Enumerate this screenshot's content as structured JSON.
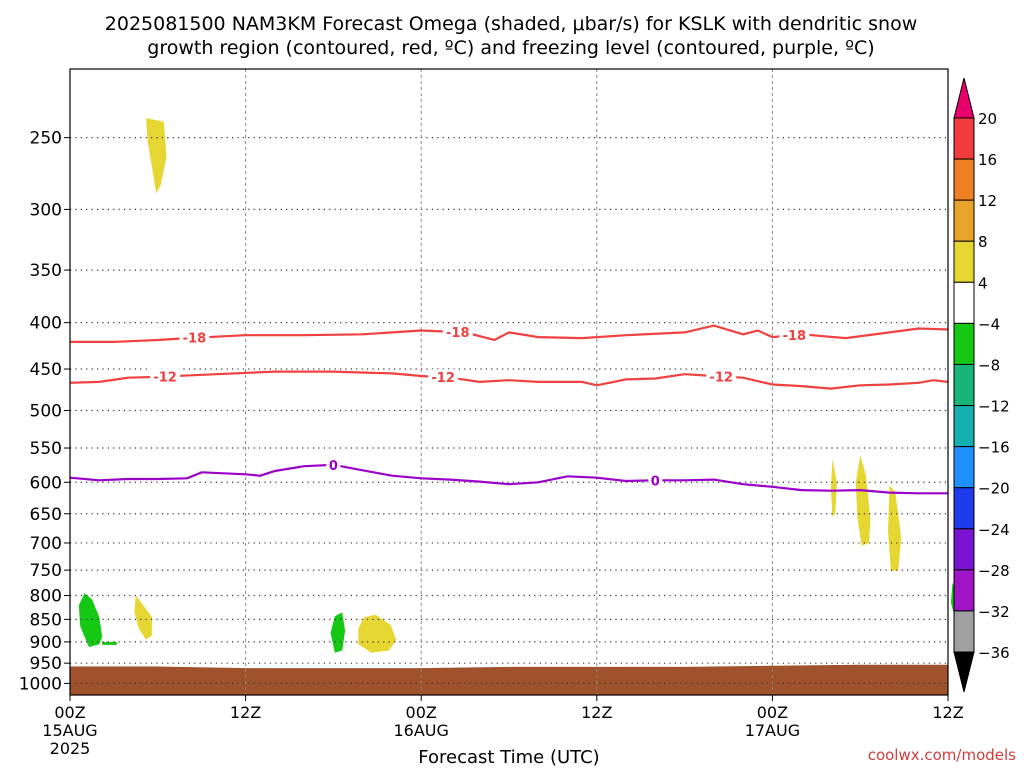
{
  "chart_data": {
    "type": "heatmap",
    "title_line1": "2025081500 NAM3KM Forecast Omega (shaded, μbar/s) for KSLK with dendritic snow",
    "title_line2": "growth region (contoured, red, ºC) and freezing level (contoured, purple, ºC)",
    "xlabel": "Forecast Time (UTC)",
    "credit": "coolwx.com/models",
    "x_unit": "hours since 2025-08-15 00Z",
    "xlim": [
      0,
      60
    ],
    "ylim": [
      1030,
      210
    ],
    "y_scale": "log-pressure",
    "grid": true,
    "x_ticks": [
      {
        "x": 0,
        "label": "00Z",
        "sub": "15AUG",
        "sub2": "2025"
      },
      {
        "x": 12,
        "label": "12Z",
        "sub": "",
        "sub2": ""
      },
      {
        "x": 24,
        "label": "00Z",
        "sub": "16AUG",
        "sub2": ""
      },
      {
        "x": 36,
        "label": "12Z",
        "sub": "",
        "sub2": ""
      },
      {
        "x": 48,
        "label": "00Z",
        "sub": "17AUG",
        "sub2": ""
      },
      {
        "x": 60,
        "label": "12Z",
        "sub": "",
        "sub2": ""
      }
    ],
    "y_ticks": [
      250,
      300,
      350,
      400,
      450,
      500,
      550,
      600,
      650,
      700,
      750,
      800,
      850,
      900,
      950,
      1000
    ],
    "colorbar": {
      "levels": [
        "20",
        "16",
        "12",
        "8",
        "4",
        "−4",
        "−8",
        "−12",
        "−16",
        "−20",
        "−24",
        "−28",
        "−32",
        "−36"
      ],
      "colors": [
        "#e8006c",
        "#f03c3c",
        "#f07f23",
        "#e8a42a",
        "#e6d632",
        "#ffffff",
        "#14c814",
        "#17b577",
        "#14b0b0",
        "#1e90ff",
        "#1e3ceb",
        "#7a14d2",
        "#a014c8",
        "#a0a0a0",
        "#000000"
      ]
    },
    "ground": {
      "color": "#a0522d",
      "x": [
        0,
        6,
        12,
        18,
        24,
        30,
        36,
        42,
        48,
        54,
        60
      ],
      "p": [
        958,
        958,
        962,
        962,
        962,
        959,
        959,
        959,
        956,
        954,
        954
      ]
    },
    "contours": [
      {
        "label": "-18",
        "color": "#f04040",
        "x": [
          0,
          3,
          6,
          8,
          12,
          16,
          20,
          24,
          27,
          29,
          30,
          32,
          35,
          38,
          42,
          44,
          46,
          47,
          48,
          50,
          53,
          56,
          58,
          60
        ],
        "p": [
          420,
          420,
          418,
          416,
          413,
          413,
          412,
          408,
          410,
          418,
          410,
          415,
          416,
          413,
          410,
          403,
          412,
          408,
          415,
          412,
          416,
          410,
          406,
          407
        ],
        "labels_at": [
          8.5,
          26.5,
          49.5
        ]
      },
      {
        "label": "-12",
        "color": "#f04040",
        "x": [
          0,
          2,
          4,
          6,
          10,
          14,
          18,
          22,
          24,
          26,
          28,
          30,
          32,
          35,
          36,
          38,
          40,
          42,
          44,
          46,
          48,
          50,
          52,
          54,
          56,
          58,
          59,
          60
        ],
        "p": [
          466,
          465,
          460,
          459,
          456,
          453,
          453,
          455,
          458,
          460,
          465,
          463,
          465,
          465,
          469,
          462,
          461,
          456,
          458,
          460,
          468,
          470,
          473,
          469,
          468,
          466,
          463,
          465
        ],
        "labels_at": [
          6.5,
          25.5,
          44.5
        ]
      },
      {
        "label": "0",
        "color": "#9b00c8",
        "x": [
          0,
          2,
          4,
          6,
          8,
          9,
          12,
          13,
          14,
          16,
          18,
          20,
          22,
          24,
          26,
          28,
          30,
          32,
          34,
          36,
          38,
          40,
          42,
          44,
          46,
          48,
          50,
          52,
          54,
          56,
          58,
          60
        ],
        "p": [
          593,
          597,
          595,
          595,
          594,
          585,
          588,
          590,
          583,
          576,
          574,
          582,
          590,
          594,
          596,
          599,
          603,
          600,
          591,
          593,
          598,
          597,
          597,
          596,
          603,
          607,
          612,
          613,
          612,
          616,
          617,
          617
        ],
        "labels_at": [
          18,
          40
        ]
      }
    ],
    "blobs": [
      {
        "color": "#e6d632",
        "x": [
          5.2,
          6.4,
          6.6,
          6.2,
          5.9,
          5.3
        ],
        "p": [
          238,
          240,
          262,
          282,
          288,
          252
        ]
      },
      {
        "color": "#14c814",
        "x": [
          1.0,
          1.5,
          2.0,
          2.2,
          2.0,
          1.3,
          0.7,
          0.6
        ],
        "p": [
          795,
          808,
          845,
          888,
          905,
          912,
          865,
          820
        ]
      },
      {
        "color": "#14c814",
        "x": [
          2.2,
          3.2,
          3.2,
          2.2
        ],
        "p": [
          900,
          900,
          907,
          907
        ]
      },
      {
        "color": "#e6d632",
        "x": [
          4.5,
          5.2,
          5.6,
          5.6,
          5.2,
          4.7,
          4.4
        ],
        "p": [
          800,
          828,
          845,
          885,
          895,
          870,
          835
        ]
      },
      {
        "color": "#14c814",
        "x": [
          18.1,
          18.6,
          18.8,
          18.6,
          18.1,
          17.8
        ],
        "p": [
          843,
          835,
          875,
          920,
          925,
          880
        ]
      },
      {
        "color": "#e6d632",
        "x": [
          20.1,
          20.9,
          21.9,
          22.3,
          21.8,
          20.6,
          19.7,
          19.7
        ],
        "p": [
          845,
          840,
          862,
          895,
          920,
          925,
          905,
          870
        ]
      },
      {
        "color": "#e6d632",
        "x": [
          52.1,
          52.4,
          52.3,
          52.1,
          52.0
        ],
        "p": [
          565,
          600,
          650,
          655,
          610
        ]
      },
      {
        "color": "#e6d632",
        "x": [
          54.0,
          54.4,
          54.7,
          54.6,
          54.1,
          53.8,
          53.7
        ],
        "p": [
          560,
          590,
          660,
          700,
          705,
          655,
          600
        ]
      },
      {
        "color": "#e6d632",
        "x": [
          56.0,
          56.4,
          56.8,
          56.6,
          56.1,
          55.9
        ],
        "p": [
          605,
          615,
          690,
          750,
          752,
          680
        ]
      },
      {
        "color": "#14c814",
        "x": [
          60.3,
          60.7,
          60.8,
          60.5,
          60.2
        ],
        "p": [
          775,
          795,
          845,
          850,
          815
        ]
      }
    ]
  }
}
